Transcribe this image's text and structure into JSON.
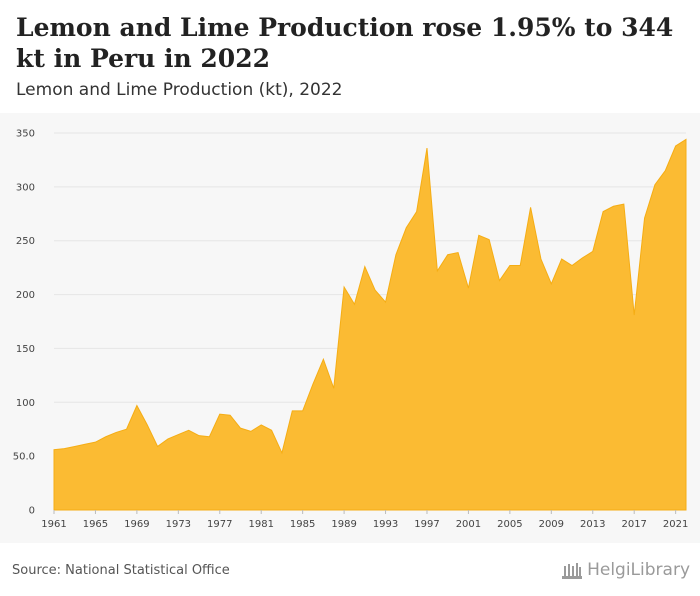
{
  "header": {
    "title": "Lemon and Lime Production rose 1.95% to 344 kt in Peru in 2022",
    "subtitle": "Lemon and Lime Production (kt), 2022"
  },
  "footer": {
    "source": "Source: National Statistical Office",
    "brand": "HelgiLibrary"
  },
  "colors": {
    "area_fill": "#fbbb33",
    "area_stroke": "#f5ad14",
    "plot_background": "#f7f7f7",
    "grid": "#e6e6e6"
  },
  "chart_data": {
    "type": "area",
    "title": "",
    "xlabel": "",
    "ylabel": "",
    "ylim": [
      0,
      350
    ],
    "xlim": [
      1961,
      2022
    ],
    "yticks": [
      0,
      50,
      100,
      150,
      200,
      250,
      300,
      350
    ],
    "ytick_labels": [
      "0",
      "50.0",
      "100",
      "150",
      "200",
      "250",
      "300",
      "350"
    ],
    "xticks": [
      1961,
      1965,
      1969,
      1973,
      1977,
      1981,
      1985,
      1989,
      1993,
      1997,
      2001,
      2005,
      2009,
      2013,
      2017,
      2021
    ],
    "grid": true,
    "legend": "none",
    "series": [
      {
        "x": [
          1961,
          1962,
          1963,
          1964,
          1965,
          1966,
          1967,
          1968,
          1969,
          1970,
          1971,
          1972,
          1973,
          1974,
          1975,
          1976,
          1977,
          1978,
          1979,
          1980,
          1981,
          1982,
          1983,
          1984,
          1985,
          1986,
          1987,
          1988,
          1989,
          1990,
          1991,
          1992,
          1993,
          1994,
          1995,
          1996,
          1997,
          1998,
          1999,
          2000,
          2001,
          2002,
          2003,
          2004,
          2005,
          2006,
          2007,
          2008,
          2009,
          2010,
          2011,
          2012,
          2013,
          2014,
          2015,
          2016,
          2017,
          2018,
          2019,
          2020,
          2021,
          2022
        ],
        "values": [
          56,
          57,
          59,
          61,
          63,
          68,
          72,
          75,
          97,
          79,
          59,
          66,
          70,
          74,
          69,
          68,
          89,
          88,
          76,
          73,
          79,
          74,
          53,
          92,
          92,
          117,
          140,
          113,
          207,
          191,
          226,
          204,
          193,
          237,
          262,
          277,
          336,
          222,
          237,
          239,
          206,
          255,
          251,
          213,
          227,
          227,
          281,
          233,
          210,
          233,
          227,
          234,
          240,
          277,
          282,
          284,
          181,
          271,
          302,
          315,
          338,
          344
        ]
      }
    ]
  }
}
